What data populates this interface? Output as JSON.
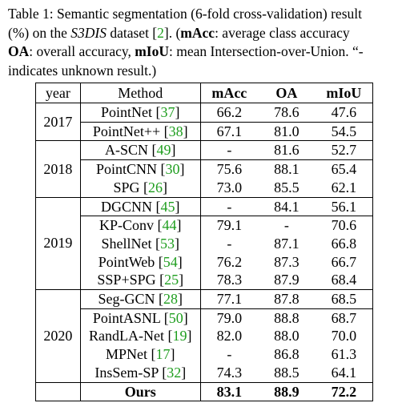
{
  "caption": {
    "line1_a": "Table 1: Semantic segmentation (6-fold cross-validation) result",
    "line2_a": "(%) on the ",
    "line2_dataset": "S3DIS",
    "line2_b": " dataset [",
    "line2_cite": "2",
    "line2_c": "].  (",
    "line2_macc": "mAcc",
    "line2_d": ":  average class accuracy",
    "line3_oa": "OA",
    "line3_a": ": overall accuracy, ",
    "line3_miou": "mIoU",
    "line3_b": ": mean Intersection-over-Union. “-",
    "line4": "indicates unknown result.)"
  },
  "table": {
    "headers": {
      "year": "year",
      "method": "Method",
      "macc": "mAcc",
      "oa": "OA",
      "miou": "mIoU"
    },
    "groups": [
      {
        "year": "2017",
        "rows": [
          {
            "method": "PointNet",
            "cite": "37",
            "macc": "66.2",
            "oa": "78.6",
            "miou": "47.6"
          },
          {
            "method": "PointNet++",
            "cite": "38",
            "macc": "67.1",
            "oa": "81.0",
            "miou": "54.5"
          }
        ]
      },
      {
        "year": "2018",
        "rows": [
          {
            "method": "A-SCN",
            "cite": "49",
            "macc": "-",
            "oa": "81.6",
            "miou": "52.7"
          },
          {
            "method": "PointCNN",
            "cite": "30",
            "macc": "75.6",
            "oa": "88.1",
            "miou": "65.4"
          },
          {
            "method": "SPG",
            "cite": "26",
            "macc": "73.0",
            "oa": "85.5",
            "miou": "62.1"
          }
        ]
      },
      {
        "year": "2019",
        "rows": [
          {
            "method": "DGCNN",
            "cite": "45",
            "macc": "-",
            "oa": "84.1",
            "miou": "56.1"
          },
          {
            "method": "KP-Conv",
            "cite": "44",
            "macc": "79.1",
            "oa": "-",
            "miou": "70.6"
          },
          {
            "method": "ShellNet",
            "cite": "53",
            "macc": "-",
            "oa": "87.1",
            "miou": "66.8"
          },
          {
            "method": "PointWeb",
            "cite": "54",
            "macc": "76.2",
            "oa": "87.3",
            "miou": "66.7"
          },
          {
            "method": "SSP+SPG",
            "cite": "25",
            "macc": "78.3",
            "oa": "87.9",
            "miou": "68.4"
          }
        ]
      },
      {
        "year": "2020",
        "rows": [
          {
            "method": "Seg-GCN",
            "cite": "28",
            "macc": "77.1",
            "oa": "87.8",
            "miou": "68.5"
          },
          {
            "method": "PointASNL",
            "cite": "50",
            "macc": "79.0",
            "oa": "88.8",
            "miou": "68.7"
          },
          {
            "method": "RandLA-Net",
            "cite": "19",
            "macc": "82.0",
            "oa": "88.0",
            "miou": "70.0"
          },
          {
            "method": "MPNet",
            "cite": "17",
            "macc": "-",
            "oa": "86.8",
            "miou": "61.3"
          },
          {
            "method": "InsSem-SP",
            "cite": "32",
            "macc": "74.3",
            "oa": "88.5",
            "miou": "64.1"
          }
        ]
      }
    ],
    "ours": {
      "method": "Ours",
      "macc": "83.1",
      "oa": "88.9",
      "miou": "72.2"
    }
  },
  "colors": {
    "citation": "#1f9e1f",
    "text": "#000000"
  }
}
